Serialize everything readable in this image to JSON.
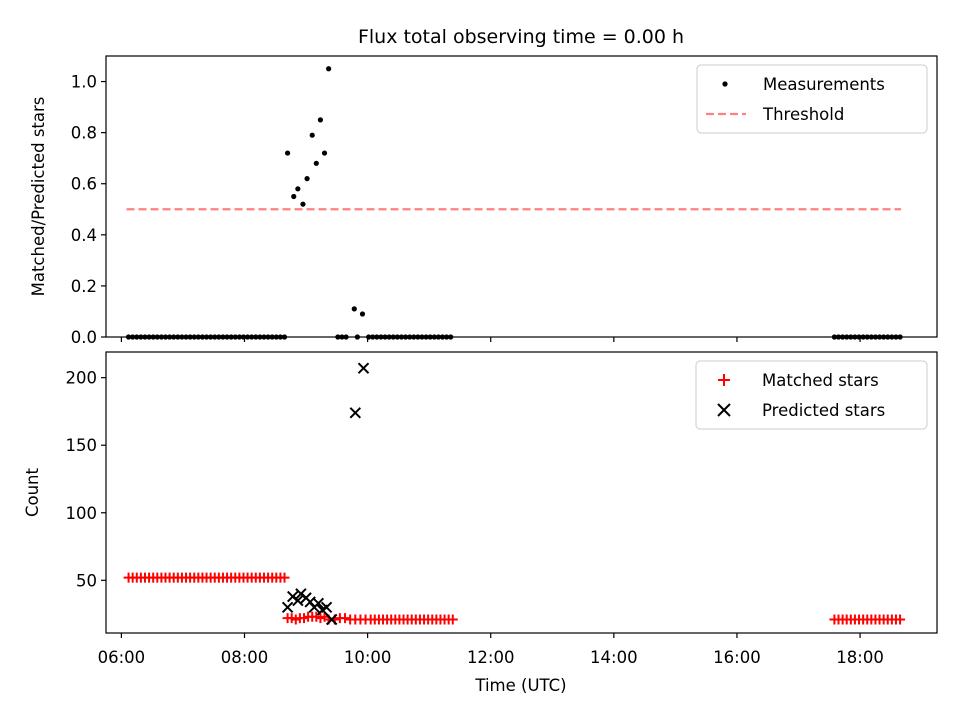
{
  "chart_data": [
    {
      "type": "scatter",
      "title": "Flux total observing time = 0.00 h",
      "xlabel": "",
      "ylabel": "Matched/Predicted stars",
      "xlim": [
        "05:45",
        "19:15"
      ],
      "ylim": [
        0,
        1.1
      ],
      "yticks": [
        0.0,
        0.2,
        0.4,
        0.6,
        0.8,
        1.0
      ],
      "ytick_labels": [
        "0.0",
        "0.2",
        "0.4",
        "0.6",
        "0.8",
        "1.0"
      ],
      "legend_position": "top-right",
      "series": [
        {
          "name": "Measurements",
          "marker": "dot",
          "color": "#000000",
          "points": [
            [
              "06:07",
              0
            ],
            [
              "06:11",
              0
            ],
            [
              "06:15",
              0
            ],
            [
              "06:19",
              0
            ],
            [
              "06:23",
              0
            ],
            [
              "06:27",
              0
            ],
            [
              "06:31",
              0
            ],
            [
              "06:35",
              0
            ],
            [
              "06:39",
              0
            ],
            [
              "06:43",
              0
            ],
            [
              "06:47",
              0
            ],
            [
              "06:51",
              0
            ],
            [
              "06:55",
              0
            ],
            [
              "06:59",
              0
            ],
            [
              "07:03",
              0
            ],
            [
              "07:07",
              0
            ],
            [
              "07:11",
              0
            ],
            [
              "07:15",
              0
            ],
            [
              "07:19",
              0
            ],
            [
              "07:23",
              0
            ],
            [
              "07:27",
              0
            ],
            [
              "07:31",
              0
            ],
            [
              "07:35",
              0
            ],
            [
              "07:39",
              0
            ],
            [
              "07:43",
              0
            ],
            [
              "07:47",
              0
            ],
            [
              "07:51",
              0
            ],
            [
              "07:55",
              0
            ],
            [
              "07:59",
              0
            ],
            [
              "08:03",
              0
            ],
            [
              "08:07",
              0
            ],
            [
              "08:11",
              0
            ],
            [
              "08:15",
              0
            ],
            [
              "08:19",
              0
            ],
            [
              "08:23",
              0
            ],
            [
              "08:27",
              0
            ],
            [
              "08:31",
              0
            ],
            [
              "08:35",
              0
            ],
            [
              "08:39",
              0
            ],
            [
              "08:42",
              0.72
            ],
            [
              "08:48",
              0.55
            ],
            [
              "08:52",
              0.58
            ],
            [
              "08:57",
              0.52
            ],
            [
              "09:01",
              0.62
            ],
            [
              "09:06",
              0.79
            ],
            [
              "09:10",
              0.68
            ],
            [
              "09:14",
              0.85
            ],
            [
              "09:18",
              0.72
            ],
            [
              "09:22",
              1.05
            ],
            [
              "09:31",
              0
            ],
            [
              "09:35",
              0
            ],
            [
              "09:39",
              0
            ],
            [
              "09:47",
              0.11
            ],
            [
              "09:50",
              0
            ],
            [
              "09:55",
              0.09
            ],
            [
              "10:01",
              0
            ],
            [
              "10:05",
              0
            ],
            [
              "10:09",
              0
            ],
            [
              "10:13",
              0
            ],
            [
              "10:17",
              0
            ],
            [
              "10:21",
              0
            ],
            [
              "10:25",
              0
            ],
            [
              "10:29",
              0
            ],
            [
              "10:33",
              0
            ],
            [
              "10:37",
              0
            ],
            [
              "10:41",
              0
            ],
            [
              "10:45",
              0
            ],
            [
              "10:49",
              0
            ],
            [
              "10:53",
              0
            ],
            [
              "10:57",
              0
            ],
            [
              "11:01",
              0
            ],
            [
              "11:05",
              0
            ],
            [
              "11:09",
              0
            ],
            [
              "11:13",
              0
            ],
            [
              "11:17",
              0
            ],
            [
              "11:21",
              0
            ],
            [
              "17:35",
              0
            ],
            [
              "17:39",
              0
            ],
            [
              "17:43",
              0
            ],
            [
              "17:47",
              0
            ],
            [
              "17:51",
              0
            ],
            [
              "17:55",
              0
            ],
            [
              "17:59",
              0
            ],
            [
              "18:03",
              0
            ],
            [
              "18:07",
              0
            ],
            [
              "18:11",
              0
            ],
            [
              "18:15",
              0
            ],
            [
              "18:19",
              0
            ],
            [
              "18:23",
              0
            ],
            [
              "18:27",
              0
            ],
            [
              "18:31",
              0
            ],
            [
              "18:35",
              0
            ],
            [
              "18:39",
              0
            ]
          ]
        },
        {
          "name": "Threshold",
          "style": "dashed line",
          "color": "#ff8080",
          "points": [
            [
              "06:05",
              0.5
            ],
            [
              "18:40",
              0.5
            ]
          ]
        }
      ]
    },
    {
      "type": "scatter",
      "title": "",
      "xlabel": "Time (UTC)",
      "ylabel": "Count",
      "xlim": [
        "05:45",
        "19:15"
      ],
      "ylim": [
        11,
        219
      ],
      "yticks": [
        50,
        100,
        150,
        200
      ],
      "ytick_labels": [
        "50",
        "100",
        "150",
        "200"
      ],
      "xticks": [
        "06:00",
        "08:00",
        "10:00",
        "12:00",
        "14:00",
        "16:00",
        "18:00"
      ],
      "xtick_labels": [
        "06:00",
        "08:00",
        "10:00",
        "12:00",
        "14:00",
        "16:00",
        "18:00"
      ],
      "legend_position": "top-right",
      "series": [
        {
          "name": "Matched stars",
          "marker": "plus",
          "color": "#ff0000",
          "points": [
            [
              "06:07",
              52
            ],
            [
              "06:11",
              52
            ],
            [
              "06:15",
              52
            ],
            [
              "06:19",
              52
            ],
            [
              "06:23",
              52
            ],
            [
              "06:27",
              52
            ],
            [
              "06:31",
              52
            ],
            [
              "06:35",
              52
            ],
            [
              "06:39",
              52
            ],
            [
              "06:43",
              52
            ],
            [
              "06:47",
              52
            ],
            [
              "06:51",
              52
            ],
            [
              "06:55",
              52
            ],
            [
              "06:59",
              52
            ],
            [
              "07:03",
              52
            ],
            [
              "07:07",
              52
            ],
            [
              "07:11",
              52
            ],
            [
              "07:15",
              52
            ],
            [
              "07:19",
              52
            ],
            [
              "07:23",
              52
            ],
            [
              "07:27",
              52
            ],
            [
              "07:31",
              52
            ],
            [
              "07:35",
              52
            ],
            [
              "07:39",
              52
            ],
            [
              "07:43",
              52
            ],
            [
              "07:47",
              52
            ],
            [
              "07:51",
              52
            ],
            [
              "07:55",
              52
            ],
            [
              "07:59",
              52
            ],
            [
              "08:03",
              52
            ],
            [
              "08:07",
              52
            ],
            [
              "08:11",
              52
            ],
            [
              "08:15",
              52
            ],
            [
              "08:19",
              52
            ],
            [
              "08:23",
              52
            ],
            [
              "08:27",
              52
            ],
            [
              "08:31",
              52
            ],
            [
              "08:35",
              52
            ],
            [
              "08:39",
              52
            ],
            [
              "08:42",
              22
            ],
            [
              "08:46",
              22
            ],
            [
              "08:50",
              21
            ],
            [
              "08:54",
              22
            ],
            [
              "08:58",
              22
            ],
            [
              "09:02",
              23
            ],
            [
              "09:06",
              23
            ],
            [
              "09:10",
              23
            ],
            [
              "09:14",
              22
            ],
            [
              "09:18",
              23
            ],
            [
              "09:22",
              21
            ],
            [
              "09:28",
              21
            ],
            [
              "09:33",
              22
            ],
            [
              "09:38",
              22
            ],
            [
              "09:43",
              21
            ],
            [
              "09:48",
              21
            ],
            [
              "09:53",
              21
            ],
            [
              "09:58",
              21
            ],
            [
              "10:03",
              21
            ],
            [
              "10:07",
              21
            ],
            [
              "10:11",
              21
            ],
            [
              "10:15",
              21
            ],
            [
              "10:19",
              21
            ],
            [
              "10:23",
              21
            ],
            [
              "10:27",
              21
            ],
            [
              "10:31",
              21
            ],
            [
              "10:35",
              21
            ],
            [
              "10:39",
              21
            ],
            [
              "10:43",
              21
            ],
            [
              "10:47",
              21
            ],
            [
              "10:51",
              21
            ],
            [
              "10:55",
              21
            ],
            [
              "10:59",
              21
            ],
            [
              "11:03",
              21
            ],
            [
              "11:07",
              21
            ],
            [
              "11:11",
              21
            ],
            [
              "11:15",
              21
            ],
            [
              "11:19",
              21
            ],
            [
              "11:23",
              21
            ],
            [
              "17:35",
              21
            ],
            [
              "17:39",
              21
            ],
            [
              "17:43",
              21
            ],
            [
              "17:47",
              21
            ],
            [
              "17:51",
              21
            ],
            [
              "17:55",
              21
            ],
            [
              "17:59",
              21
            ],
            [
              "18:03",
              21
            ],
            [
              "18:07",
              21
            ],
            [
              "18:11",
              21
            ],
            [
              "18:15",
              21
            ],
            [
              "18:19",
              21
            ],
            [
              "18:23",
              21
            ],
            [
              "18:27",
              21
            ],
            [
              "18:31",
              21
            ],
            [
              "18:35",
              21
            ],
            [
              "18:39",
              21
            ]
          ]
        },
        {
          "name": "Predicted stars",
          "marker": "x",
          "color": "#000000",
          "points": [
            [
              "08:42",
              30
            ],
            [
              "08:47",
              38
            ],
            [
              "08:52",
              35
            ],
            [
              "08:55",
              40
            ],
            [
              "09:00",
              37
            ],
            [
              "09:04",
              34
            ],
            [
              "09:08",
              30
            ],
            [
              "09:12",
              33
            ],
            [
              "09:16",
              28
            ],
            [
              "09:20",
              30
            ],
            [
              "09:25",
              21
            ],
            [
              "09:48",
              174
            ],
            [
              "09:56",
              207
            ]
          ]
        }
      ]
    }
  ]
}
